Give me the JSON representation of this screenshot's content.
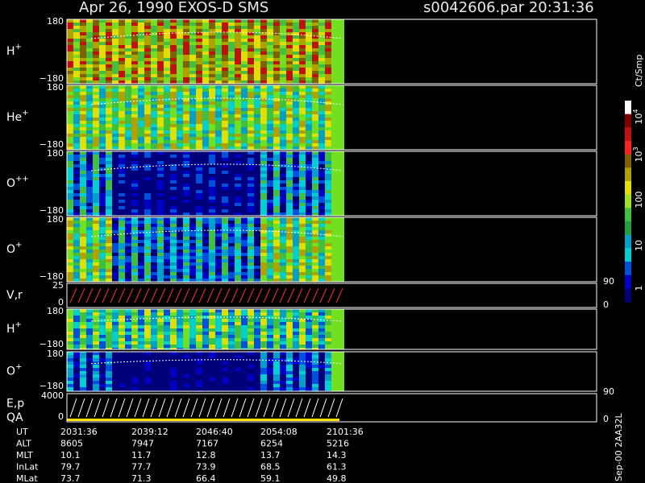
{
  "header": {
    "title": "Apr 26, 1990   EXOS-D SMS",
    "file": "s0042606.par  20:31:36"
  },
  "panels": [
    {
      "label": "H",
      "sup": "+",
      "ticks": [
        "180",
        "−180"
      ]
    },
    {
      "label": "He",
      "sup": "+",
      "ticks": [
        "180",
        "−180"
      ]
    },
    {
      "label": "O",
      "sup": "++",
      "ticks": [
        "180",
        "−180"
      ]
    },
    {
      "label": "O",
      "sup": "+",
      "ticks": [
        "180",
        "−180"
      ]
    },
    {
      "label": "V,r",
      "sup": "",
      "ticks": [
        "25",
        "0"
      ],
      "right_ticks": [
        "90",
        "0"
      ]
    },
    {
      "label": "H",
      "sup": "+",
      "ticks": [
        "180",
        "−180"
      ]
    },
    {
      "label": "O",
      "sup": "+",
      "ticks": [
        "180",
        "−180"
      ]
    },
    {
      "label": "E,p",
      "sup": "",
      "label2": "QA",
      "ticks": [
        "4000",
        "0"
      ],
      "right_ticks": [
        "90",
        "0"
      ]
    }
  ],
  "colorbar": {
    "unit": "Ct/Smp",
    "labels": [
      {
        "base": "10",
        "exp": "4"
      },
      {
        "base": "10",
        "exp": "3"
      },
      {
        "base": "100",
        "exp": ""
      },
      {
        "base": "10",
        "exp": ""
      },
      {
        "base": "1",
        "exp": ""
      }
    ]
  },
  "table": {
    "rows": [
      [
        "UT",
        "2031:36",
        "2039:12",
        "2046:40",
        "2054:08",
        "2101:36"
      ],
      [
        "ALT",
        "8605",
        "7947",
        "7167",
        "6254",
        "5216"
      ],
      [
        "MLT",
        "10.1",
        "11.7",
        "12.8",
        "13.7",
        "14.3"
      ],
      [
        "InLat",
        "79.7",
        "77.7",
        "73.9",
        "68.5",
        "61.3"
      ],
      [
        "MLat",
        "73.7",
        "71.3",
        "66.4",
        "59.1",
        "49.8"
      ]
    ]
  },
  "footer": "Sep-00  2AA32L"
}
